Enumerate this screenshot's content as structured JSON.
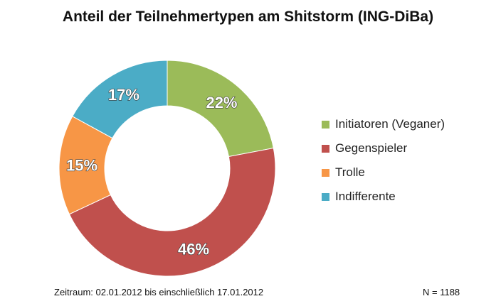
{
  "chart_data": {
    "type": "pie",
    "title": "Anteil der Teilnehmertypen am Shitstorm (ING-DiBa)",
    "categories": [
      "Initiatoren (Veganer)",
      "Gegenspieler",
      "Trolle",
      "Indifferente"
    ],
    "values": [
      22,
      46,
      15,
      17
    ],
    "data_labels": [
      "22%",
      "46%",
      "15%",
      "17%"
    ],
    "colors": [
      "#9bbb59",
      "#c0504d",
      "#f79646",
      "#4bacc6"
    ],
    "legend_position": "right",
    "style": "doughnut"
  },
  "footer": {
    "period": "Zeitraum: 02.01.2012 bis einschließlich 17.01.2012",
    "n": "N = 1188"
  }
}
